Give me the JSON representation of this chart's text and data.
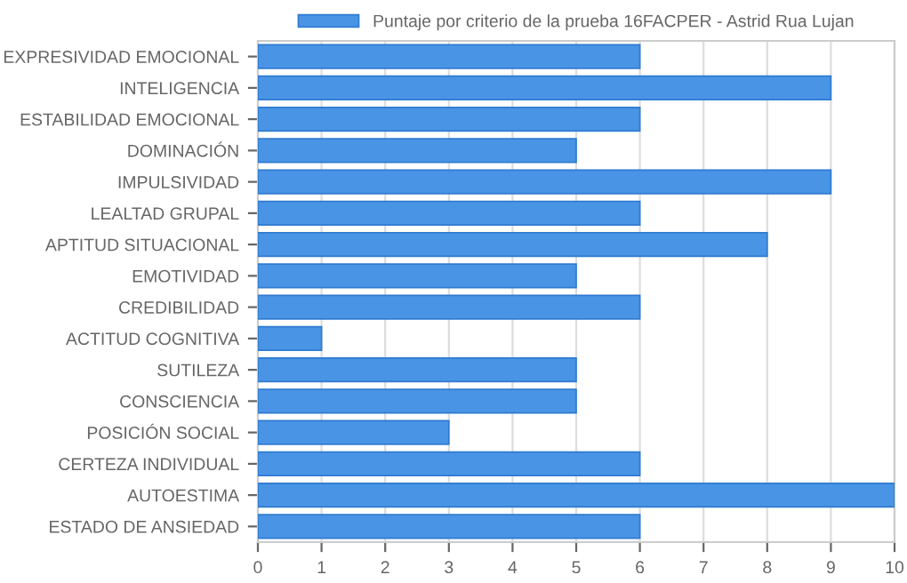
{
  "chart_data": {
    "type": "bar",
    "orientation": "horizontal",
    "categories": [
      "EXPRESIVIDAD EMOCIONAL",
      "INTELIGENCIA",
      "ESTABILIDAD EMOCIONAL",
      "DOMINACIÓN",
      "IMPULSIVIDAD",
      "LEALTAD GRUPAL",
      "APTITUD SITUACIONAL",
      "EMOTIVIDAD",
      "CREDIBILIDAD",
      "ACTITUD COGNITIVA",
      "SUTILEZA",
      "CONSCIENCIA",
      "POSICIÓN SOCIAL",
      "CERTEZA INDIVIDUAL",
      "AUTOESTIMA",
      "ESTADO DE ANSIEDAD"
    ],
    "series": [
      {
        "name": "Puntaje por criterio de la prueba 16FACPER - Astrid Rua Lujan",
        "color": "#4a94e6",
        "values": [
          6,
          9,
          6,
          5,
          9,
          6,
          8,
          5,
          6,
          1,
          5,
          5,
          3,
          6,
          10,
          6
        ]
      }
    ],
    "xlim": [
      0,
      10
    ],
    "xticks": [
      0,
      1,
      2,
      3,
      4,
      5,
      6,
      7,
      8,
      9,
      10
    ],
    "grid": "x",
    "legend": "top"
  }
}
